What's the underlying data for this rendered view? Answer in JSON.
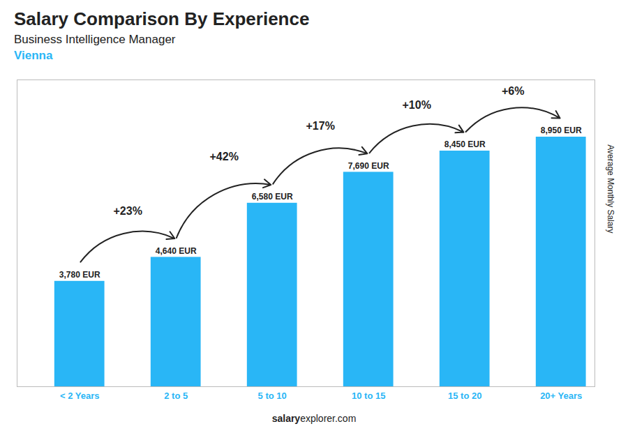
{
  "chart_data": {
    "type": "bar",
    "title": "Salary Comparison By Experience",
    "subtitle": "Business Intelligence Manager",
    "city": "Vienna",
    "ylabel": "Average Monthly Salary",
    "categories": [
      "< 2 Years",
      "2 to 5",
      "5 to 10",
      "10 to 15",
      "15 to 20",
      "20+ Years"
    ],
    "values": [
      3780,
      4640,
      6580,
      7690,
      8450,
      8950
    ],
    "value_labels": [
      "3,780 EUR",
      "4,640 EUR",
      "6,580 EUR",
      "7,690 EUR",
      "8,450 EUR",
      "8,950 EUR"
    ],
    "data_labels": true,
    "change_labels": [
      "+23%",
      "+42%",
      "+17%",
      "+10%",
      "+6%"
    ],
    "color": "#29b6f6",
    "ylim": [
      0,
      11000
    ],
    "tick_labels": "x",
    "watermark": [
      "salary",
      "explorer.com"
    ]
  }
}
